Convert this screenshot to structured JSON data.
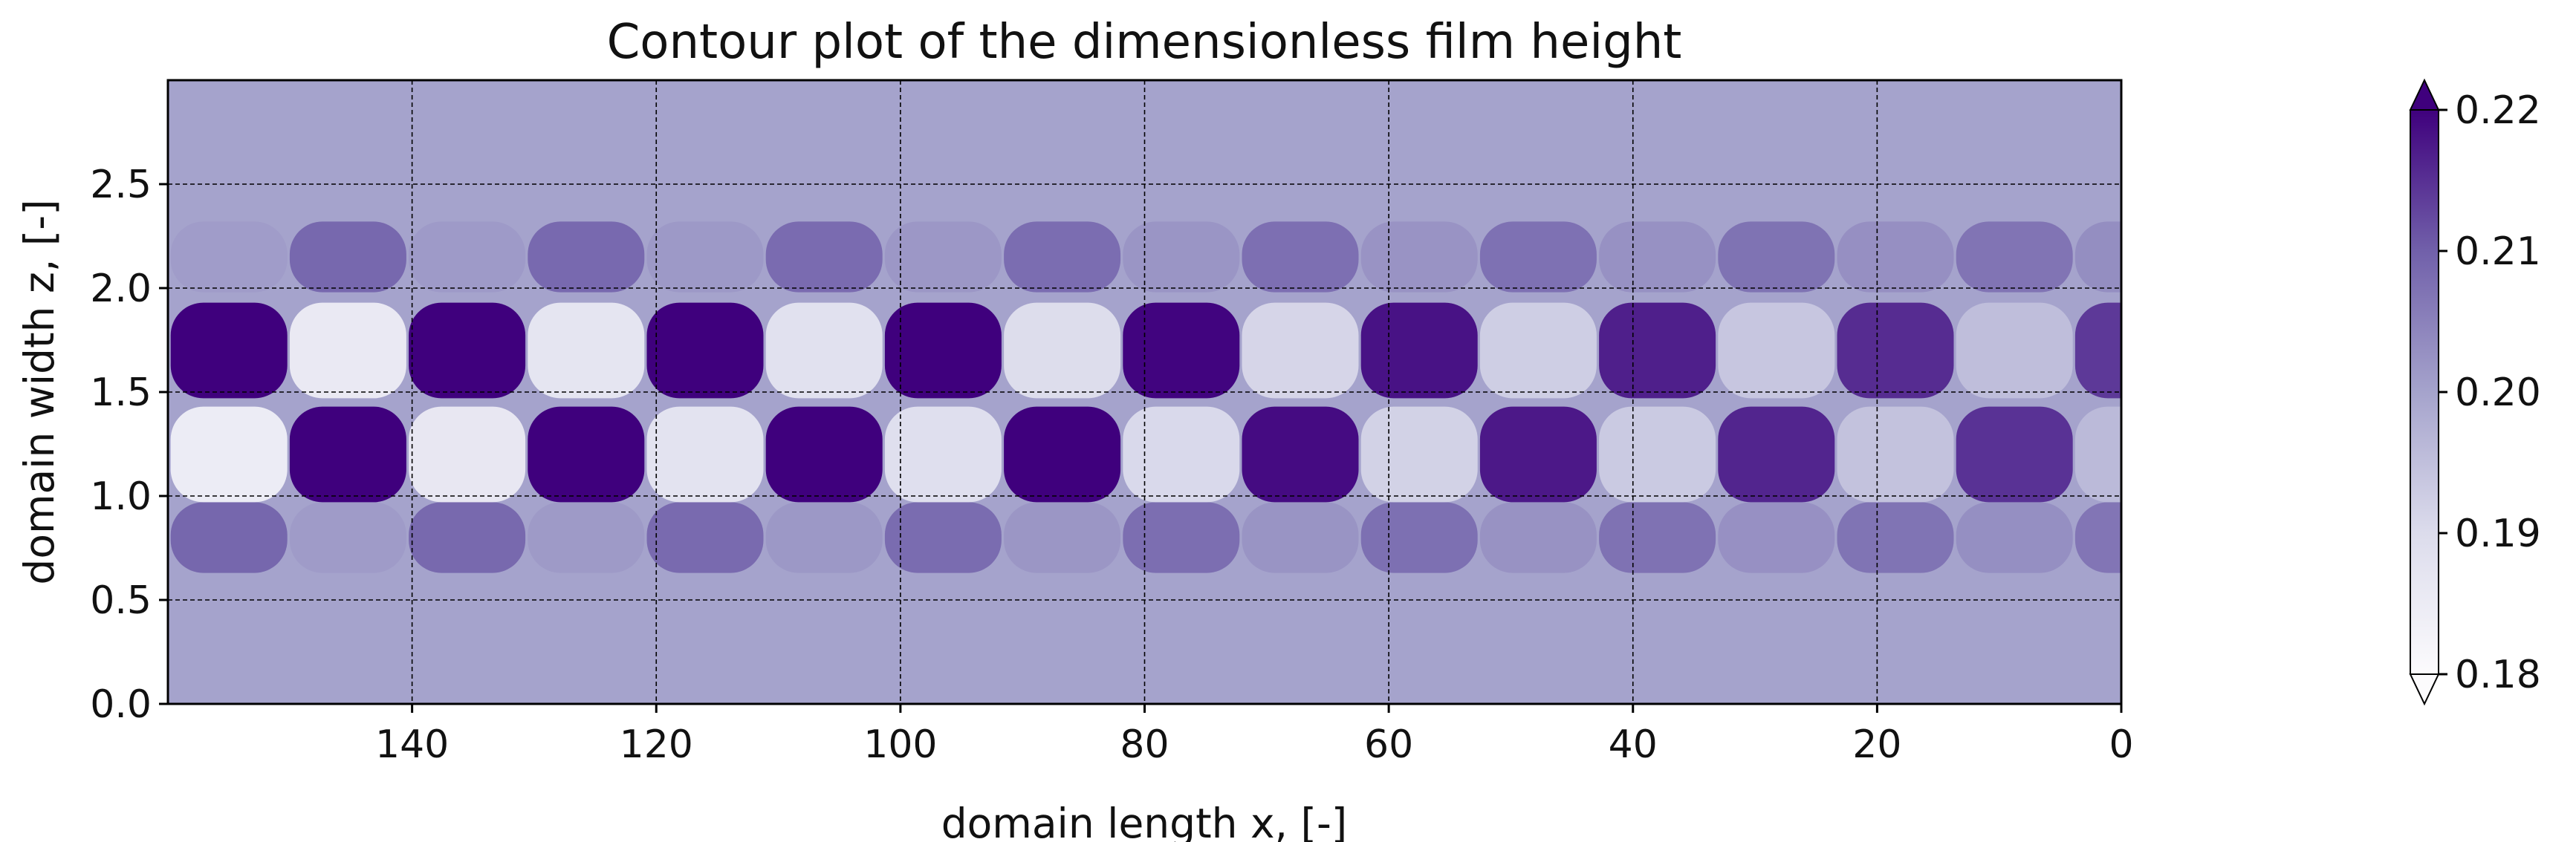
{
  "chart_data": {
    "type": "heatmap",
    "title": "Contour plot of the dimensionless film height",
    "xlabel": "domain length x, [-]",
    "ylabel": "domain width z, [-]",
    "x_axis_inverted": true,
    "xlim": [
      160,
      0
    ],
    "ylim": [
      0,
      3
    ],
    "x_ticks": [
      140,
      120,
      100,
      80,
      60,
      40,
      20,
      0
    ],
    "x_tick_labels": [
      "140",
      "120",
      "100",
      "80",
      "60",
      "40",
      "20",
      "0"
    ],
    "y_ticks": [
      0.0,
      0.5,
      1.0,
      1.5,
      2.0,
      2.5
    ],
    "y_tick_labels": [
      "0.0",
      "0.5",
      "1.0",
      "1.5",
      "2.0",
      "2.5"
    ],
    "grid": true,
    "colormap": "Purples",
    "colorbar": {
      "range": [
        0.18,
        0.22
      ],
      "extend": "both",
      "ticks": [
        0.18,
        0.19,
        0.2,
        0.21,
        0.22
      ],
      "tick_labels": [
        "0.18",
        "0.19",
        "0.20",
        "0.21",
        "0.22"
      ]
    },
    "baseline_value": 0.205,
    "pattern": {
      "band_centers_z": [
        0.8,
        1.2,
        1.7,
        2.15
      ],
      "band_amplitudes": [
        0.004,
        0.02,
        0.02,
        0.004
      ],
      "cell_spacing_x": 19.5,
      "upper_band_cell_centers_x": [
        155,
        135.5,
        116,
        96.5,
        77,
        57.5,
        38,
        18.5,
        0
      ],
      "lower_band_cell_centers_x": [
        145.5,
        126,
        106.5,
        87,
        67.5,
        48,
        28.5,
        9
      ],
      "decay_per_unit_x": 0.0035
    },
    "colors": {
      "low": "#fcfbfd",
      "baseline": "#a5a3cc",
      "high": "#3f007d",
      "grid": "#000000"
    }
  }
}
